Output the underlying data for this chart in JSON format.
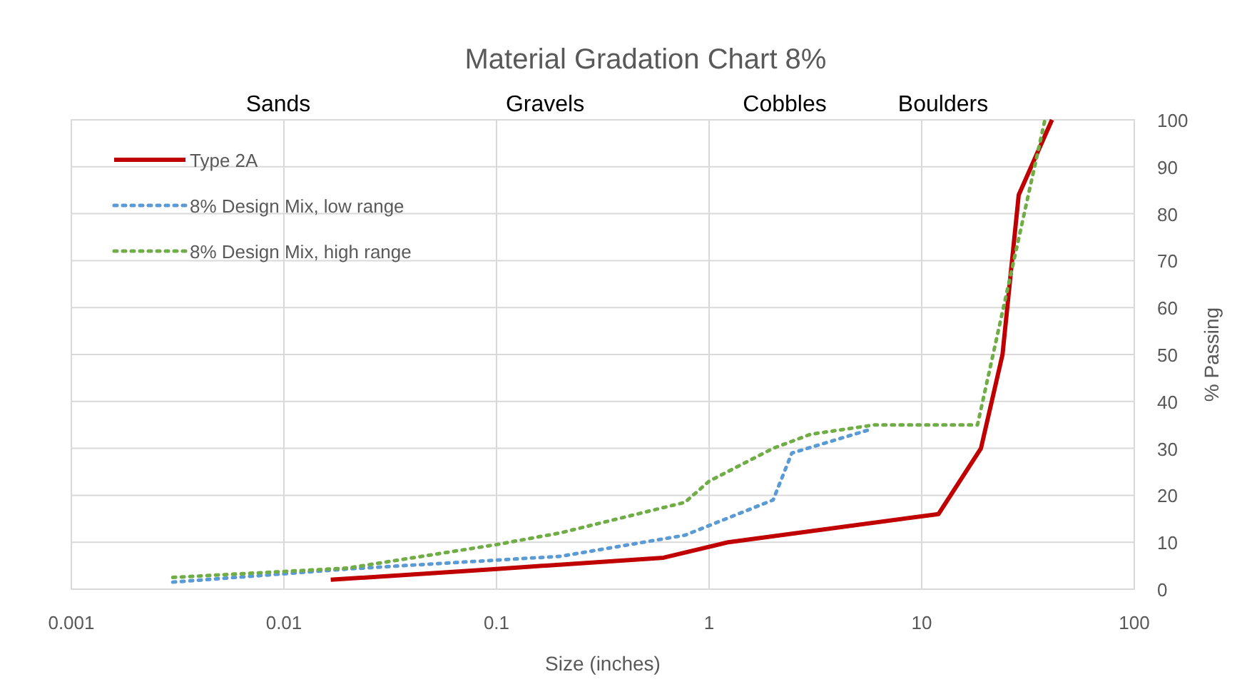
{
  "chart_data": {
    "type": "line",
    "title": "Material Gradation Chart 8%",
    "xlabel": "Size (inches)",
    "ylabel": "% Passing",
    "log": "x",
    "grid": true,
    "legend": "top left",
    "xlim": [
      0.001,
      100
    ],
    "xticks": [
      0.001,
      0.01,
      0.1,
      1,
      10,
      100
    ],
    "ylim": [
      0,
      100
    ],
    "yticks": [
      0,
      10,
      20,
      30,
      40,
      50,
      60,
      70,
      80,
      90,
      100
    ],
    "annotations": [
      "Sands",
      "Gravels",
      "Cobbles",
      "Boulders"
    ],
    "series": [
      {
        "name": "Type 2A",
        "color": "#c00000",
        "line_style": "solid",
        "x": [
          0.0166,
          0.1,
          0.61,
          1.23,
          12,
          19,
          24,
          28.6,
          41
        ],
        "values": [
          2,
          4.3,
          6.7,
          10,
          16,
          30,
          50,
          84,
          100
        ]
      },
      {
        "name": "8% Design Mix, low range",
        "color": "#5b9bd5",
        "line_style": "dotted",
        "x": [
          0.003,
          0.02,
          0.2,
          0.77,
          2,
          2.45,
          5.7
        ],
        "values": [
          1.5,
          4.3,
          7,
          11.5,
          19,
          29,
          34
        ]
      },
      {
        "name": "8% Design Mix, high range",
        "color": "#70ad47",
        "line_style": "dotted",
        "x": [
          0.003,
          0.02,
          0.1,
          0.2,
          0.77,
          1,
          2,
          3,
          6,
          18.3,
          38
        ],
        "values": [
          2.5,
          4.5,
          9.5,
          12,
          18.5,
          23,
          30,
          33,
          35,
          35,
          100
        ]
      }
    ]
  }
}
